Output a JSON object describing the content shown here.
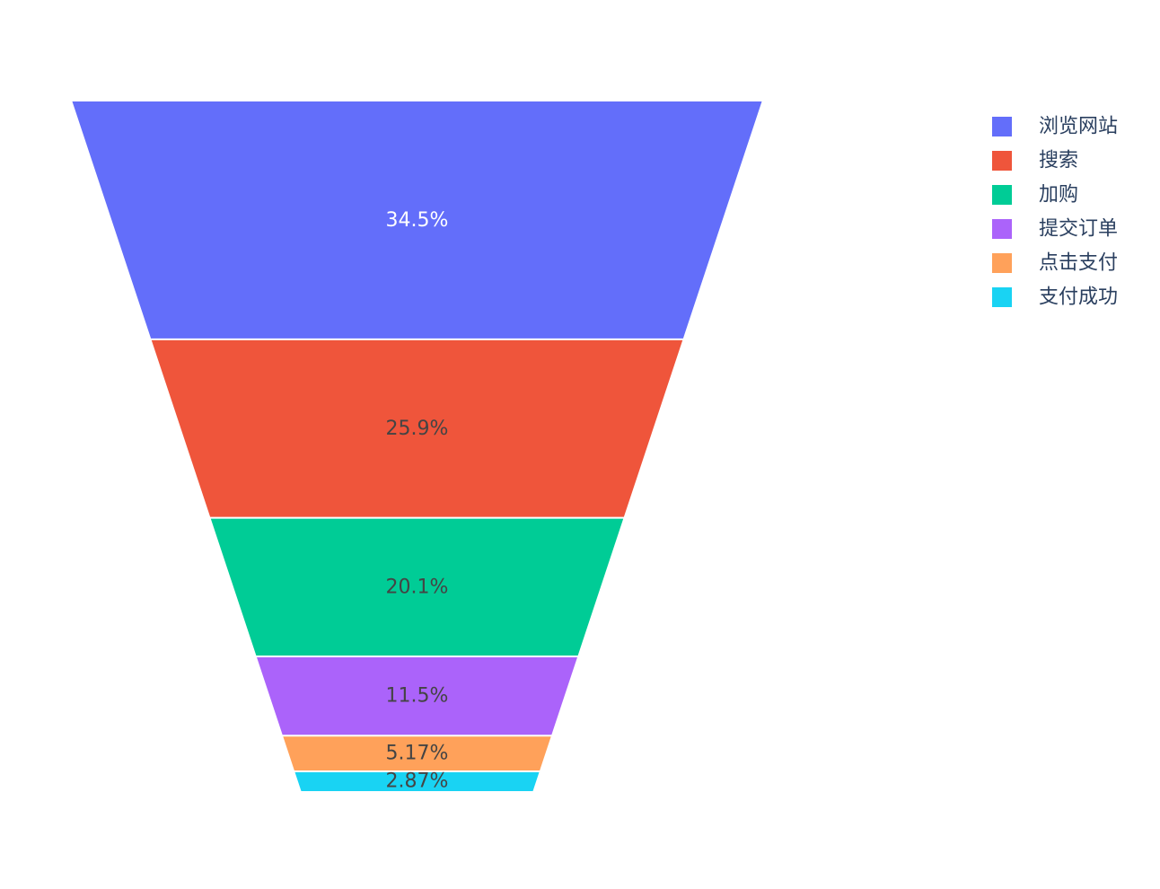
{
  "chart_data": {
    "type": "funnel-area",
    "categories": [
      "浏览网站",
      "搜索",
      "加购",
      "提交订单",
      "点击支付",
      "支付成功"
    ],
    "values": [
      34.5,
      25.9,
      20.1,
      11.5,
      5.17,
      2.87
    ],
    "labels": [
      "34.5%",
      "25.9%",
      "20.1%",
      "11.5%",
      "5.17%",
      "2.87%"
    ],
    "colors": [
      "#636efa",
      "#ef553b",
      "#00cc96",
      "#ab63fa",
      "#ffa15a",
      "#19d3f3"
    ],
    "label_colors": [
      "#ffffff",
      "#444444",
      "#444444",
      "#444444",
      "#444444",
      "#444444"
    ],
    "legend_position": "top-right",
    "title": "",
    "xlabel": "",
    "ylabel": ""
  }
}
